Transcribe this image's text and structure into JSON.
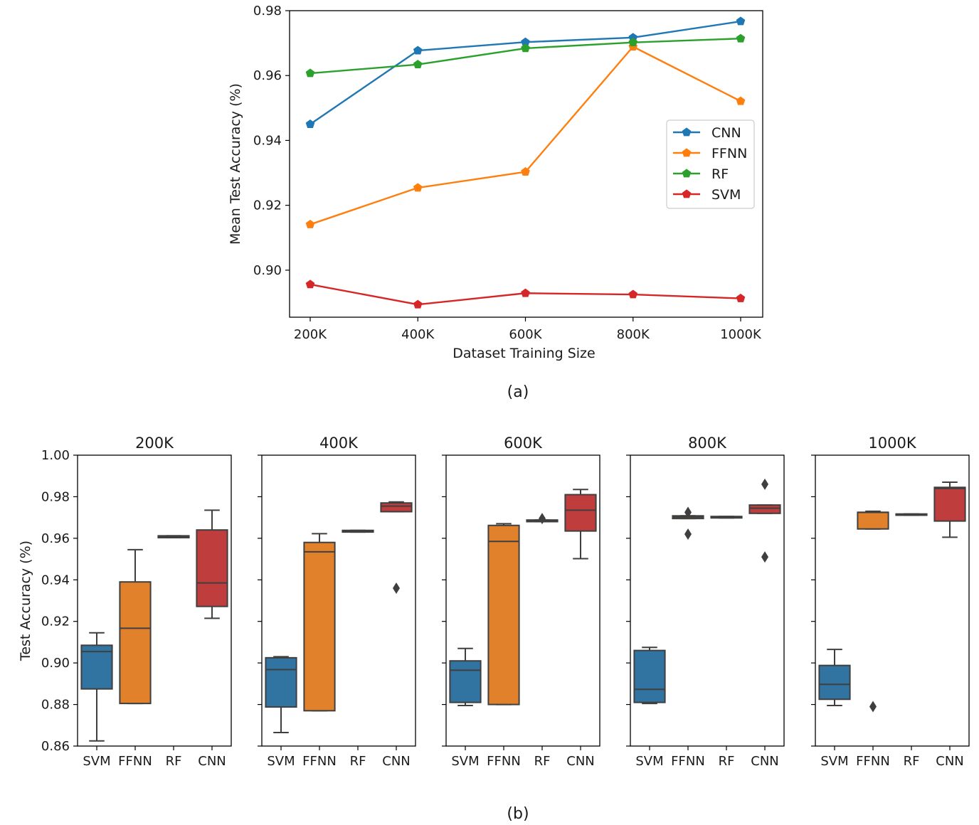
{
  "colors": {
    "CNN": "#1f77b4",
    "FFNN": "#ff7f0e",
    "RF": "#2ca02c",
    "SVM": "#d62728",
    "box_CNN": "#c03d3e",
    "box_FFNN": "#e1812c",
    "box_RF": "#3a923a",
    "box_SVM": "#3274a1",
    "box_edge": "#3f3f3f"
  },
  "chart_data": [
    {
      "type": "line",
      "caption": "(a)",
      "title": "",
      "xlabel": "Dataset Training Size",
      "ylabel": "Mean Test Accuracy (%)",
      "categories": [
        "200K",
        "400K",
        "600K",
        "800K",
        "1000K"
      ],
      "ylim": [
        0.8855,
        0.98
      ],
      "yticks": [
        "0.90",
        "0.92",
        "0.94",
        "0.96",
        "0.98"
      ],
      "ytick_values": [
        0.9,
        0.92,
        0.94,
        0.96,
        0.98
      ],
      "legend": [
        "CNN",
        "FFNN",
        "RF",
        "SVM"
      ],
      "legend_position": "center-right",
      "marker": "pentagon",
      "series": [
        {
          "name": "CNN",
          "values": [
            0.945,
            0.9677,
            0.9703,
            0.9717,
            0.9767
          ]
        },
        {
          "name": "FFNN",
          "values": [
            0.9141,
            0.9254,
            0.9303,
            0.9689,
            0.9521
          ]
        },
        {
          "name": "RF",
          "values": [
            0.9607,
            0.9634,
            0.9684,
            0.9702,
            0.9714
          ]
        },
        {
          "name": "SVM",
          "values": [
            0.8956,
            0.8894,
            0.8929,
            0.8925,
            0.8913
          ]
        }
      ]
    },
    {
      "type": "box",
      "caption": "(b)",
      "ylabel": "Test Accuracy (%)",
      "ylim": [
        0.86,
        1.0
      ],
      "yticks": [
        "0.86",
        "0.88",
        "0.90",
        "0.92",
        "0.94",
        "0.96",
        "0.98",
        "1.00"
      ],
      "ytick_values": [
        0.86,
        0.88,
        0.9,
        0.92,
        0.94,
        0.96,
        0.98,
        1.0
      ],
      "categories": [
        "SVM",
        "FFNN",
        "RF",
        "CNN"
      ],
      "panels": [
        {
          "title": "200K",
          "boxes": [
            {
              "name": "SVM",
              "q1": 0.8875,
              "median": 0.9055,
              "q3": 0.9085,
              "whislo": 0.8625,
              "whishi": 0.9145,
              "fliers": []
            },
            {
              "name": "FFNN",
              "q1": 0.8805,
              "median": 0.9167,
              "q3": 0.939,
              "whislo": 0.8805,
              "whishi": 0.9545,
              "fliers": []
            },
            {
              "name": "RF",
              "q1": 0.9603,
              "median": 0.9607,
              "q3": 0.9612,
              "whislo": 0.9603,
              "whishi": 0.9612,
              "fliers": []
            },
            {
              "name": "CNN",
              "q1": 0.9272,
              "median": 0.9385,
              "q3": 0.964,
              "whislo": 0.9215,
              "whishi": 0.9735,
              "fliers": []
            }
          ]
        },
        {
          "title": "400K",
          "boxes": [
            {
              "name": "SVM",
              "q1": 0.8788,
              "median": 0.8968,
              "q3": 0.9025,
              "whislo": 0.8665,
              "whishi": 0.903,
              "fliers": []
            },
            {
              "name": "FFNN",
              "q1": 0.877,
              "median": 0.9535,
              "q3": 0.958,
              "whislo": 0.877,
              "whishi": 0.9622,
              "fliers": []
            },
            {
              "name": "RF",
              "q1": 0.963,
              "median": 0.9634,
              "q3": 0.9638,
              "whislo": 0.963,
              "whishi": 0.9638,
              "fliers": []
            },
            {
              "name": "CNN",
              "q1": 0.9728,
              "median": 0.9755,
              "q3": 0.977,
              "whislo": 0.9728,
              "whishi": 0.9775,
              "fliers": [
                0.936
              ]
            }
          ]
        },
        {
          "title": "600K",
          "boxes": [
            {
              "name": "SVM",
              "q1": 0.881,
              "median": 0.8965,
              "q3": 0.901,
              "whislo": 0.8795,
              "whishi": 0.907,
              "fliers": []
            },
            {
              "name": "FFNN",
              "q1": 0.88,
              "median": 0.9585,
              "q3": 0.9662,
              "whislo": 0.88,
              "whishi": 0.967,
              "fliers": []
            },
            {
              "name": "RF",
              "q1": 0.968,
              "median": 0.9684,
              "q3": 0.9688,
              "whislo": 0.968,
              "whishi": 0.9688,
              "fliers": [
                0.9695
              ]
            },
            {
              "name": "CNN",
              "q1": 0.9635,
              "median": 0.9735,
              "q3": 0.981,
              "whislo": 0.9502,
              "whishi": 0.9835,
              "fliers": []
            }
          ]
        },
        {
          "title": "800K",
          "boxes": [
            {
              "name": "SVM",
              "q1": 0.881,
              "median": 0.8873,
              "q3": 0.906,
              "whislo": 0.8805,
              "whishi": 0.9075,
              "fliers": []
            },
            {
              "name": "FFNN",
              "q1": 0.9695,
              "median": 0.9702,
              "q3": 0.9708,
              "whislo": 0.9695,
              "whishi": 0.9708,
              "fliers": [
                0.9725,
                0.962
              ]
            },
            {
              "name": "RF",
              "q1": 0.9698,
              "median": 0.9702,
              "q3": 0.9705,
              "whislo": 0.9698,
              "whishi": 0.9705,
              "fliers": []
            },
            {
              "name": "CNN",
              "q1": 0.972,
              "median": 0.9745,
              "q3": 0.976,
              "whislo": 0.972,
              "whishi": 0.976,
              "fliers": [
                0.986,
                0.951
              ]
            }
          ]
        },
        {
          "title": "1000K",
          "boxes": [
            {
              "name": "SVM",
              "q1": 0.8825,
              "median": 0.8897,
              "q3": 0.8988,
              "whislo": 0.8795,
              "whishi": 0.9065,
              "fliers": []
            },
            {
              "name": "FFNN",
              "q1": 0.9645,
              "median": 0.9725,
              "q3": 0.9725,
              "whislo": 0.9645,
              "whishi": 0.973,
              "fliers": [
                0.879
              ]
            },
            {
              "name": "RF",
              "q1": 0.9711,
              "median": 0.9714,
              "q3": 0.9717,
              "whislo": 0.9711,
              "whishi": 0.9717,
              "fliers": []
            },
            {
              "name": "CNN",
              "q1": 0.9683,
              "median": 0.984,
              "q3": 0.9845,
              "whislo": 0.9605,
              "whishi": 0.987,
              "fliers": []
            }
          ]
        }
      ]
    }
  ]
}
